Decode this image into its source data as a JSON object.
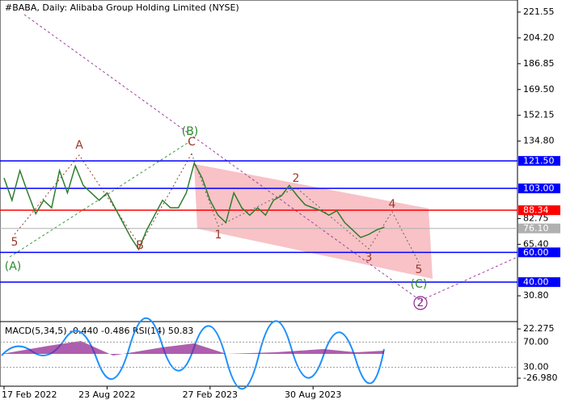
{
  "chart_data": {
    "type": "line",
    "title": "#BABA, Daily:  Alibaba Group Holding Limited (NYSE)",
    "categories": [
      "17 Feb 2022",
      null,
      null,
      null,
      null,
      null,
      null,
      null,
      null,
      null,
      null,
      null,
      null,
      "23 Aug 2022",
      null,
      null,
      null,
      null,
      null,
      null,
      null,
      null,
      null,
      null,
      null,
      null,
      "27 Feb 2023",
      null,
      null,
      null,
      null,
      null,
      null,
      null,
      null,
      null,
      null,
      null,
      null,
      "30 Aug 2023",
      null,
      null,
      null,
      null,
      null,
      null,
      null,
      null,
      null
    ],
    "values": [
      110,
      95,
      115,
      100,
      86,
      95,
      90,
      115,
      100,
      118,
      105,
      100,
      95,
      100,
      90,
      80,
      70,
      62,
      75,
      85,
      95,
      90,
      90,
      100,
      120,
      110,
      95,
      85,
      80,
      100,
      90,
      85,
      90,
      85,
      95,
      98,
      105,
      98,
      92,
      90,
      88,
      85,
      88,
      80,
      75,
      70,
      72,
      75,
      77
    ],
    "color": "#2f7d2f",
    "ylim": [
      14,
      228.6
    ],
    "yticks": [
      221.55,
      {
        "value": 204.2,
        "label": "204.20"
      },
      186.85,
      {
        "value": 169.5,
        "label": "169.50"
      },
      152.15,
      {
        "value": 134.8,
        "label": "134.80"
      },
      82.75,
      {
        "value": 65.4,
        "label": "65.40"
      },
      {
        "value": 30.8,
        "label": "30.80"
      }
    ],
    "levels": [
      {
        "value": 121.5,
        "label": "121.50",
        "color": "#0000ff"
      },
      {
        "value": 103,
        "label": "103.00",
        "color": "#0000ff"
      },
      {
        "value": 88.34,
        "label": "88.34",
        "color": "#ff0000"
      },
      {
        "value": 76.1,
        "label": "76.10",
        "color": "#b0b0b0"
      },
      {
        "value": 60,
        "label": "60.00",
        "color": "#0000ff"
      },
      {
        "value": 40,
        "label": "40.00",
        "color": "#0000ff"
      }
    ],
    "annotations": [
      "A",
      "B",
      "C",
      "(B)",
      "(A)",
      "5",
      "1",
      "2",
      "3",
      "4",
      "5",
      "(C)",
      "2"
    ],
    "macd": {
      "label": "MACD(5,34,5) -0.440 -0.486 RSI(14) 50.83",
      "ylim": [
        -35,
        28
      ],
      "yticks": [
        22.275,
        {
          "value": -26.98,
          "label": "-26.980"
        }
      ],
      "rsi_ylim": [
        0,
        100
      ],
      "rsi_yticks": [
        {
          "value": 70,
          "label": "70.00"
        },
        {
          "value": 30,
          "label": "30.00"
        }
      ]
    }
  }
}
